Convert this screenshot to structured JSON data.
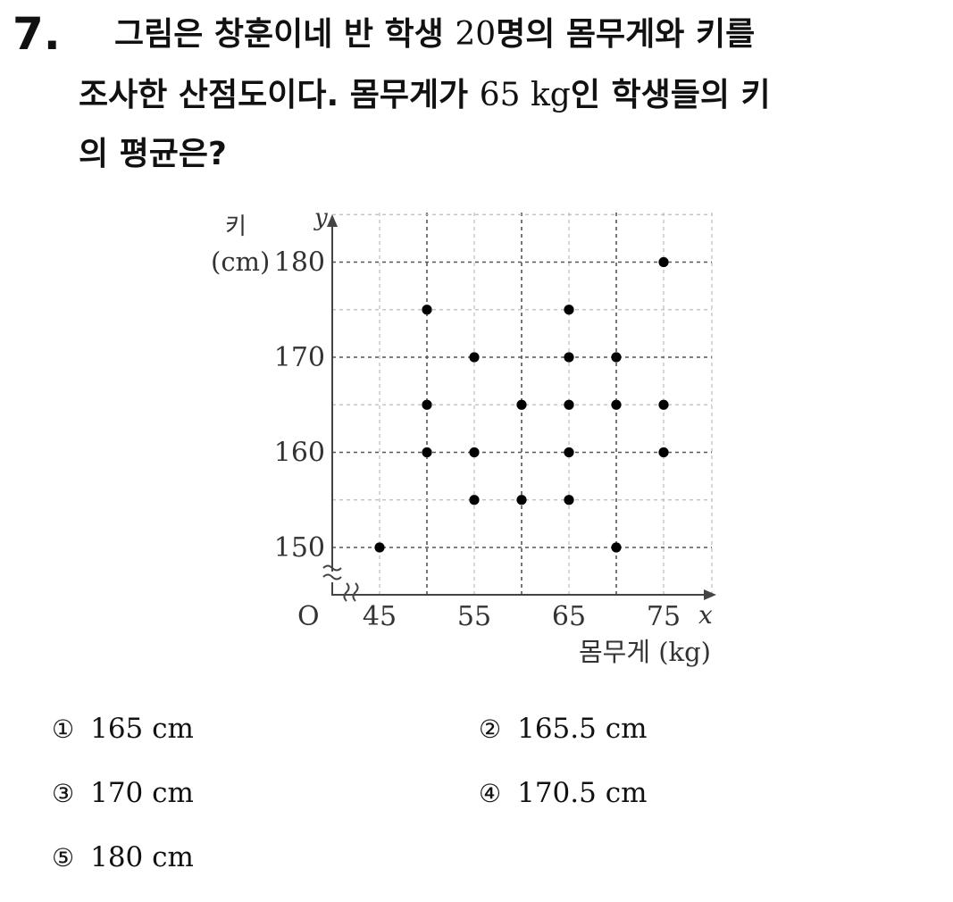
{
  "question": {
    "number": "7.",
    "line1_a": "그림은 창훈이네 반 학생 ",
    "line1_num": "20",
    "line1_b": "명의 몸무게와 키를",
    "line2_a": "조사한 산점도이다. 몸무게가 ",
    "line2_num": "65 kg",
    "line2_b": "인 학생들의 키",
    "line3": "의 평균은?"
  },
  "chart_data": {
    "type": "scatter",
    "xlabel": "몸무게 (kg)",
    "ylabel_line1": "키",
    "ylabel_line2": "(cm)",
    "x_axis_symbol": "x",
    "y_axis_symbol": "y",
    "origin_label": "O",
    "xlim": [
      45,
      75
    ],
    "ylim": [
      150,
      180
    ],
    "x_ticks": [
      "45",
      "55",
      "65",
      "75"
    ],
    "y_ticks": [
      "150",
      "160",
      "170",
      "180"
    ],
    "grid": true,
    "points": [
      {
        "x": 45,
        "y": 150
      },
      {
        "x": 50,
        "y": 175
      },
      {
        "x": 50,
        "y": 165
      },
      {
        "x": 50,
        "y": 160
      },
      {
        "x": 55,
        "y": 170
      },
      {
        "x": 55,
        "y": 160
      },
      {
        "x": 55,
        "y": 155
      },
      {
        "x": 60,
        "y": 165
      },
      {
        "x": 60,
        "y": 155
      },
      {
        "x": 65,
        "y": 175
      },
      {
        "x": 65,
        "y": 170
      },
      {
        "x": 65,
        "y": 165
      },
      {
        "x": 65,
        "y": 160
      },
      {
        "x": 65,
        "y": 155
      },
      {
        "x": 70,
        "y": 170
      },
      {
        "x": 70,
        "y": 165
      },
      {
        "x": 70,
        "y": 150
      },
      {
        "x": 75,
        "y": 180
      },
      {
        "x": 75,
        "y": 165
      },
      {
        "x": 75,
        "y": 160
      }
    ]
  },
  "choices": [
    {
      "symbol": "①",
      "text": "165 cm"
    },
    {
      "symbol": "②",
      "text": "165.5 cm"
    },
    {
      "symbol": "③",
      "text": "170 cm"
    },
    {
      "symbol": "④",
      "text": "170.5 cm"
    },
    {
      "symbol": "⑤",
      "text": "180 cm"
    }
  ]
}
